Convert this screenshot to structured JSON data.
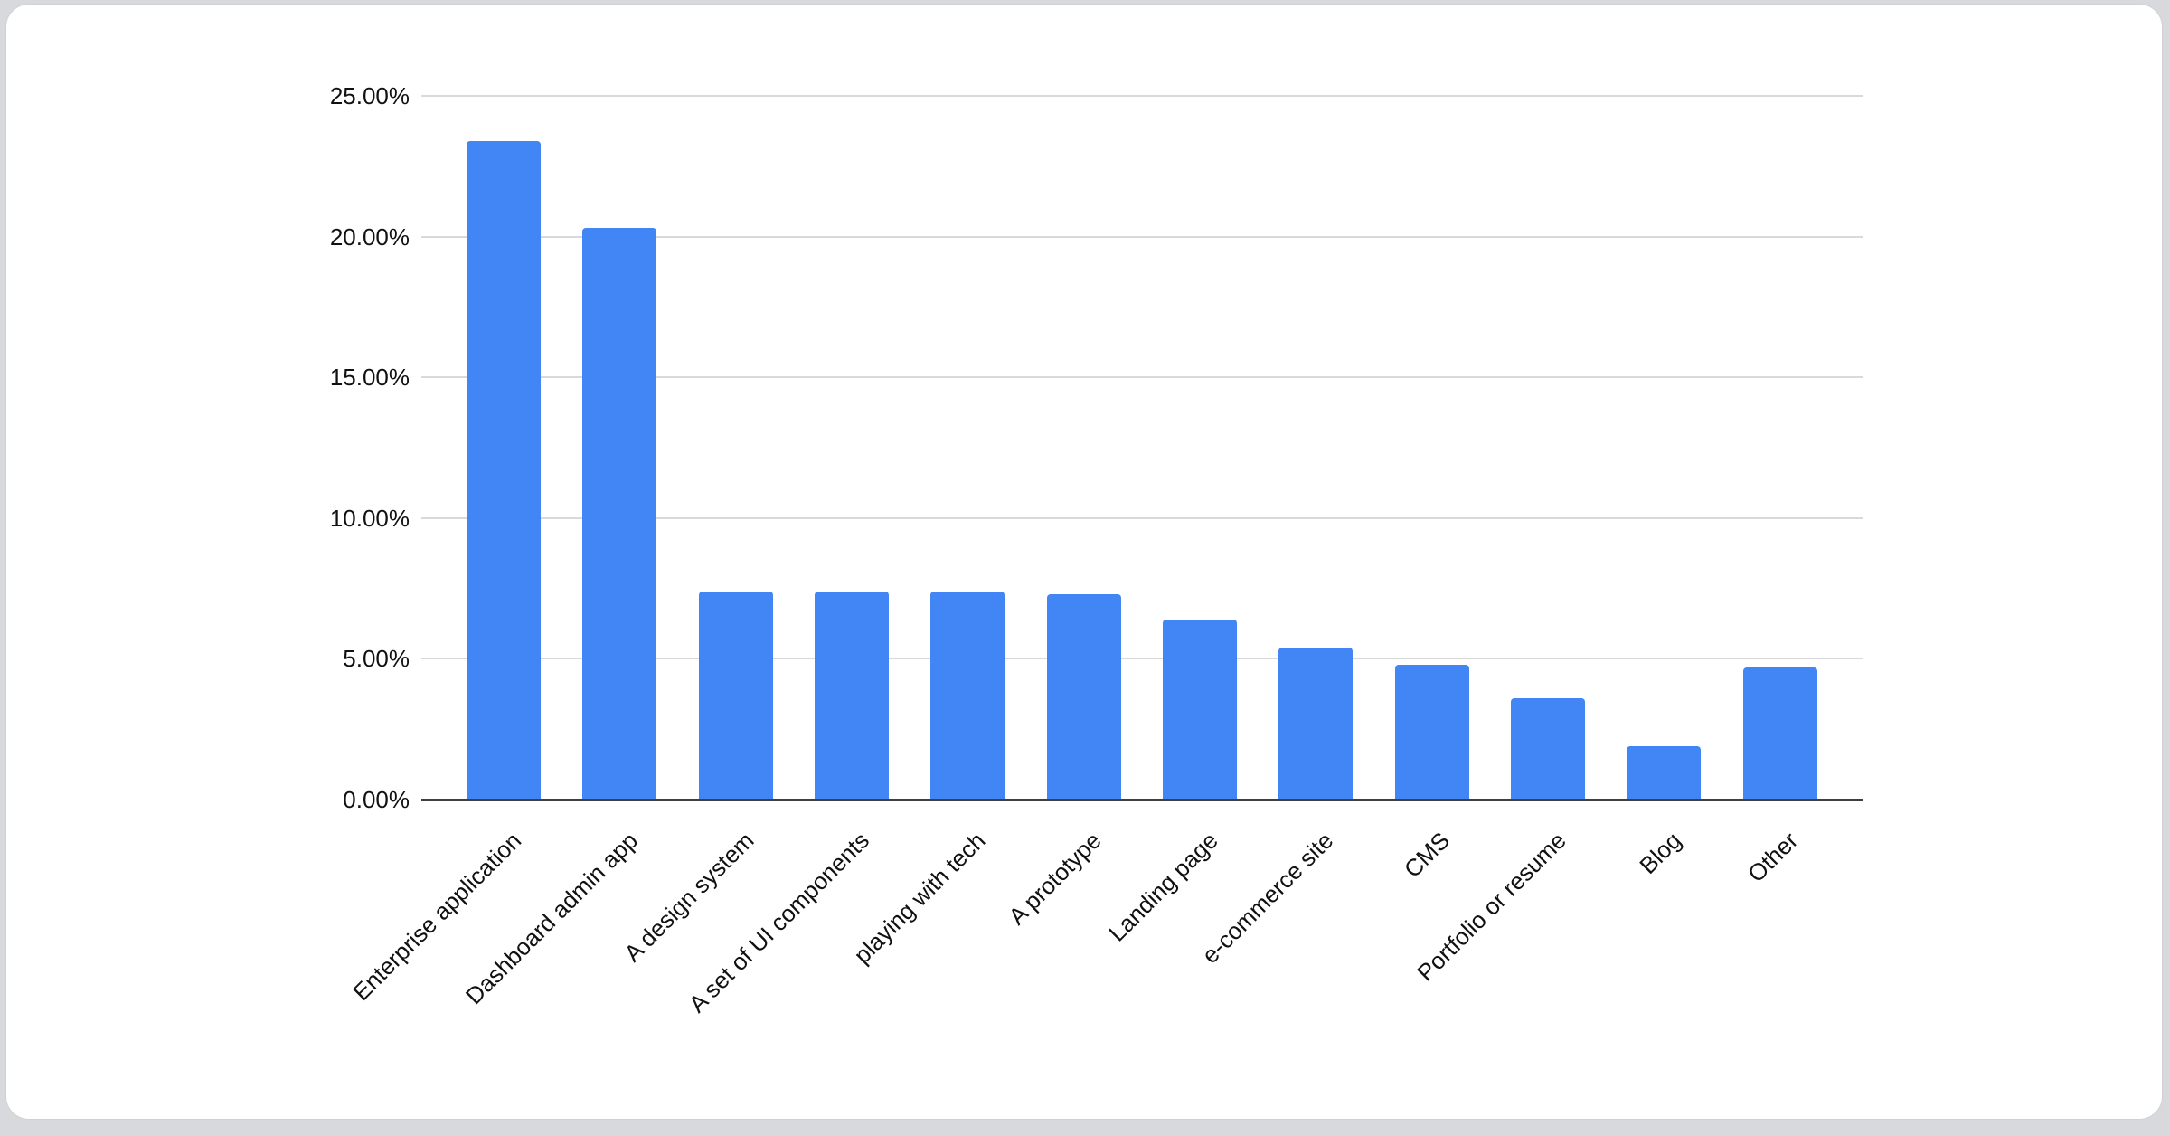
{
  "page": {
    "background_color": "#d7d9dc",
    "card_background_color": "#ffffff",
    "card_border_color": "#cfd1d4"
  },
  "chart_data": {
    "type": "bar",
    "title": "",
    "xlabel": "",
    "ylabel": "",
    "categories": [
      "Enterprise application",
      "Dashboard admin app",
      "A design system",
      "A set of UI components",
      "playing with tech",
      "A prototype",
      "Landing page",
      "e-commerce site",
      "CMS",
      "Portfolio or resume",
      "Blog",
      "Other"
    ],
    "values": [
      23.4,
      20.3,
      7.4,
      7.4,
      7.4,
      7.3,
      6.4,
      5.4,
      4.8,
      3.6,
      1.9,
      4.7
    ],
    "value_unit": "percent",
    "ylim": [
      0,
      25
    ],
    "y_ticks": [
      "25.00%",
      "20.00%",
      "15.00%",
      "10.00%",
      "5.00%",
      "0.00%"
    ],
    "grid": true,
    "legend": "none",
    "bar_color": "#4285F4",
    "gridline_color": "#d9d9d9",
    "axis_line_color": "#3f3f3f",
    "label_color": "#111111"
  }
}
